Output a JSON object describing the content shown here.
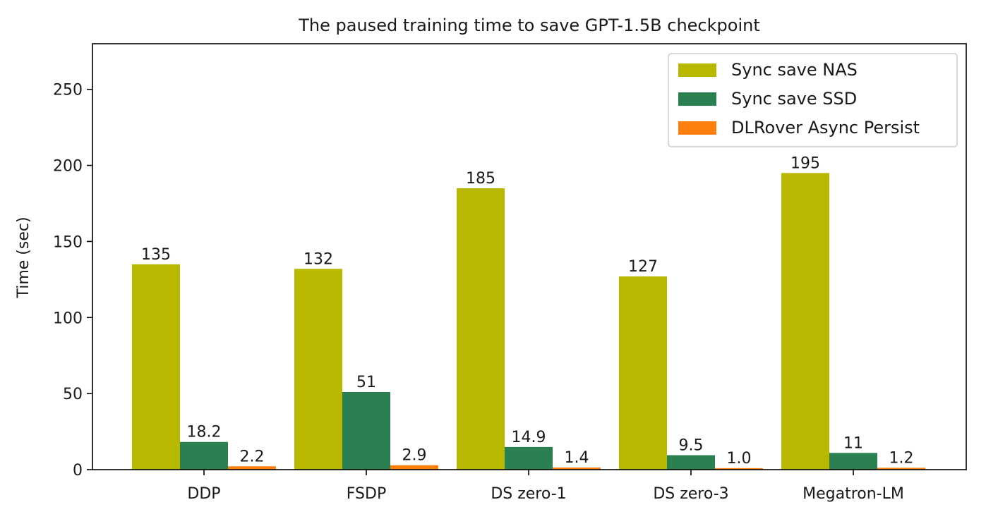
{
  "chart_data": {
    "type": "bar",
    "title": "The paused training time to save GPT-1.5B checkpoint",
    "xlabel": "",
    "ylabel": "Time (sec)",
    "ylim": [
      0,
      280
    ],
    "yticks": [
      0,
      50,
      100,
      150,
      200,
      250
    ],
    "categories": [
      "DDP",
      "FSDP",
      "DS zero-1",
      "DS zero-3",
      "Megatron-LM"
    ],
    "series": [
      {
        "name": "Sync save NAS",
        "color": "#b8b800",
        "values": [
          135,
          132,
          185,
          127,
          195
        ],
        "labels": [
          "135",
          "132",
          "185",
          "127",
          "195"
        ]
      },
      {
        "name": "Sync save SSD",
        "color": "#2a8050",
        "values": [
          18.2,
          51,
          14.9,
          9.5,
          11
        ],
        "labels": [
          "18.2",
          "51",
          "14.9",
          "9.5",
          "11"
        ]
      },
      {
        "name": "DLRover Async Persist",
        "color": "#ff7f0e",
        "values": [
          2.2,
          2.9,
          1.4,
          1.0,
          1.2
        ],
        "labels": [
          "2.2",
          "2.9",
          "1.4",
          "1.0",
          "1.2"
        ]
      }
    ],
    "legend_position": "top-right",
    "grid": false
  }
}
